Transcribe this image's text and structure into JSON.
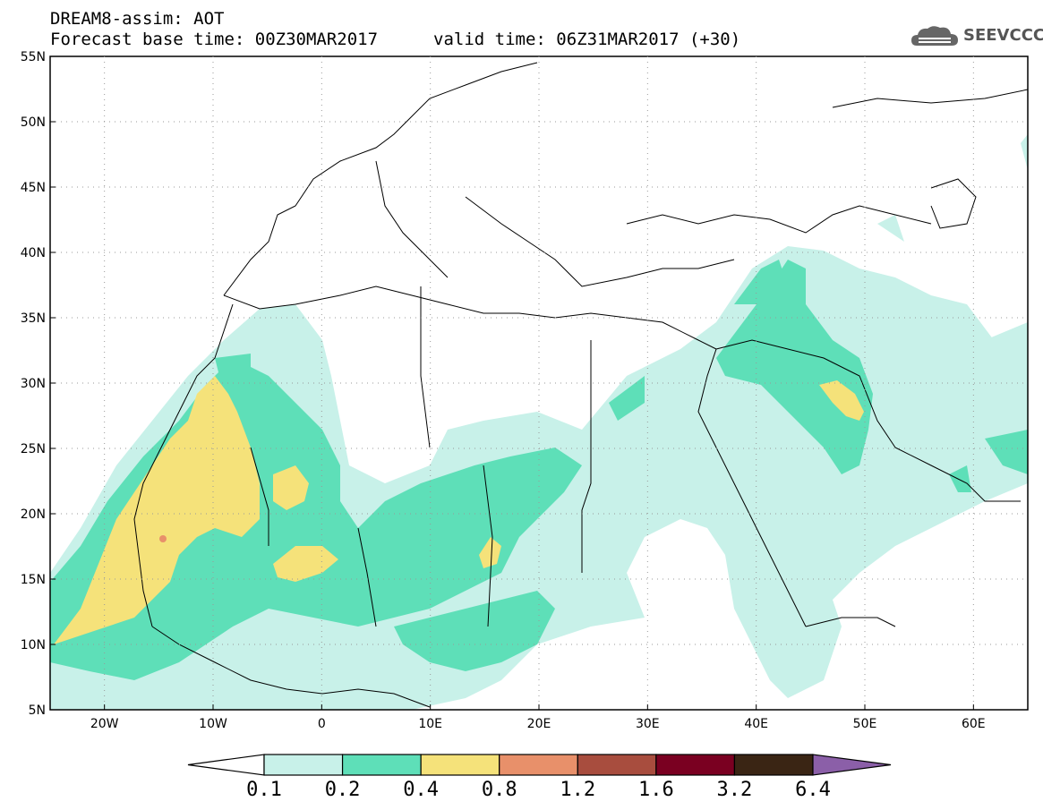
{
  "header": {
    "title_line1": "DREAM8-assim: AOT",
    "title_line2": "Forecast base time: 00Z30MAR2017",
    "valid_time": "valid time: 06Z31MAR2017 (+30)",
    "logo_text": "SEEVCCC"
  },
  "axes": {
    "lat_labels": [
      "55N",
      "50N",
      "45N",
      "40N",
      "35N",
      "30N",
      "25N",
      "20N",
      "15N",
      "10N",
      "5N"
    ],
    "lon_labels": [
      "20W",
      "10W",
      "0",
      "10E",
      "20E",
      "30E",
      "40E",
      "50E",
      "60E"
    ]
  },
  "colorbar": {
    "levels": [
      "0.1",
      "0.2",
      "0.4",
      "0.8",
      "1.2",
      "1.6",
      "3.2",
      "6.4"
    ],
    "colors": [
      "#c8f1e9",
      "#5edfb8",
      "#f5e27a",
      "#e8906a",
      "#a84d3e",
      "#7a0021",
      "#3a2514",
      "#8b5fa8"
    ]
  },
  "palette": {
    "aot_0_1": "#c8f1e9",
    "aot_0_2": "#5edfb8",
    "aot_0_4": "#f5e27a",
    "aot_0_8": "#e8906a"
  }
}
